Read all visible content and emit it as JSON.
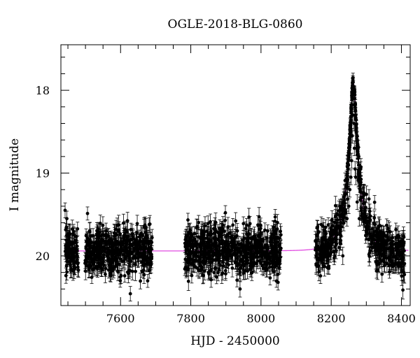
{
  "chart_data": {
    "type": "scatter",
    "title": "OGLE-2018-BLG-0860",
    "xlabel": "HJD - 2450000",
    "ylabel": "I magnitude",
    "xlim": [
      7430,
      8425
    ],
    "ylim": [
      20.6,
      17.45
    ],
    "y_inverted": true,
    "grid": false,
    "xticks": [
      7600,
      7800,
      8000,
      8200,
      8400
    ],
    "yticks": [
      18,
      19,
      20
    ],
    "series": [
      {
        "kind": "observations",
        "marker_color": "#000000",
        "error_bars": true,
        "typical_error": 0.09,
        "baseline_mag": 19.93,
        "segments": [
          {
            "x_range": [
              7440,
              7480
            ],
            "mag_mean": 19.93,
            "mag_scatter": 0.14
          },
          {
            "x_range": [
              7498,
              7527
            ],
            "mag_mean": 19.93,
            "mag_scatter": 0.14
          },
          {
            "x_range": [
              7530,
              7690
            ],
            "mag_mean": 19.92,
            "mag_scatter": 0.15
          },
          {
            "x_range": [
              7782,
              8058
            ],
            "mag_mean": 19.92,
            "mag_scatter": 0.15
          },
          {
            "x_range": [
              8155,
              8248
            ],
            "mag_mean": 19.95,
            "mag_scatter": 0.14
          },
          {
            "x_range": [
              8276,
              8410
            ],
            "mag_mean": 19.95,
            "mag_scatter": 0.14
          }
        ],
        "points": [
          {
            "x": 7442,
            "y": 19.45
          },
          {
            "x": 7447,
            "y": 19.55
          },
          {
            "x": 8245,
            "y": 19.55
          },
          {
            "x": 8250,
            "y": 19.4
          },
          {
            "x": 8253,
            "y": 19.2
          },
          {
            "x": 8256,
            "y": 19.05
          },
          {
            "x": 8258,
            "y": 18.85
          },
          {
            "x": 8260,
            "y": 18.55
          },
          {
            "x": 8261,
            "y": 18.3
          },
          {
            "x": 8262,
            "y": 18.0
          },
          {
            "x": 8263,
            "y": 17.97
          },
          {
            "x": 8264,
            "y": 18.1
          },
          {
            "x": 8265,
            "y": 18.4
          },
          {
            "x": 8266,
            "y": 18.7
          },
          {
            "x": 8268,
            "y": 18.95
          },
          {
            "x": 8270,
            "y": 19.05
          },
          {
            "x": 8274,
            "y": 19.35
          },
          {
            "x": 8280,
            "y": 19.55
          }
        ]
      },
      {
        "kind": "model",
        "line_color": "#e14be1",
        "baseline_mag": 19.94,
        "peak_mag": 17.92,
        "t0": 8263,
        "tE": 40,
        "u0": 0.155,
        "fs": 1.0
      }
    ]
  }
}
